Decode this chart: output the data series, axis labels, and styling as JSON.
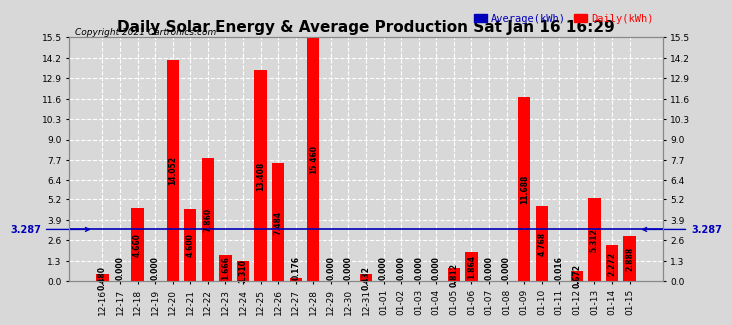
{
  "title": "Daily Solar Energy & Average Production Sat Jan 16 16:29",
  "copyright": "Copyright 2021 Cartronics.com",
  "legend_avg": "Average(kWh)",
  "legend_daily": "Daily(kWh)",
  "average_line": 3.287,
  "categories": [
    "12-16",
    "12-17",
    "12-18",
    "12-19",
    "12-20",
    "12-21",
    "12-22",
    "12-23",
    "12-24",
    "12-25",
    "12-26",
    "12-27",
    "12-28",
    "12-29",
    "12-30",
    "12-31",
    "01-01",
    "01-02",
    "01-03",
    "01-04",
    "01-05",
    "01-06",
    "01-07",
    "01-08",
    "01-09",
    "01-10",
    "01-11",
    "01-12",
    "01-13",
    "01-14",
    "01-15"
  ],
  "values": [
    0.48,
    0.0,
    4.66,
    0.0,
    14.052,
    4.6,
    7.86,
    1.666,
    1.31,
    13.408,
    7.484,
    0.176,
    15.46,
    0.0,
    0.0,
    0.432,
    0.0,
    0.0,
    0.0,
    0.0,
    0.812,
    1.864,
    0.0,
    0.0,
    11.688,
    4.768,
    0.016,
    0.672,
    5.312,
    2.272,
    2.888
  ],
  "bar_color": "#ff0000",
  "avg_line_color": "#0000bb",
  "avg_label_color": "#0000bb",
  "avg_label_value": "3.287",
  "background_color": "#d8d8d8",
  "grid_color": "#ffffff",
  "title_color": "#000000",
  "ylim": [
    0.0,
    15.5
  ],
  "yticks": [
    0.0,
    1.3,
    2.6,
    3.9,
    5.2,
    6.4,
    7.7,
    9.0,
    10.3,
    11.6,
    12.9,
    14.2,
    15.5
  ],
  "title_fontsize": 11,
  "tick_fontsize": 6.5,
  "value_fontsize": 5.5,
  "copyright_fontsize": 6.5
}
